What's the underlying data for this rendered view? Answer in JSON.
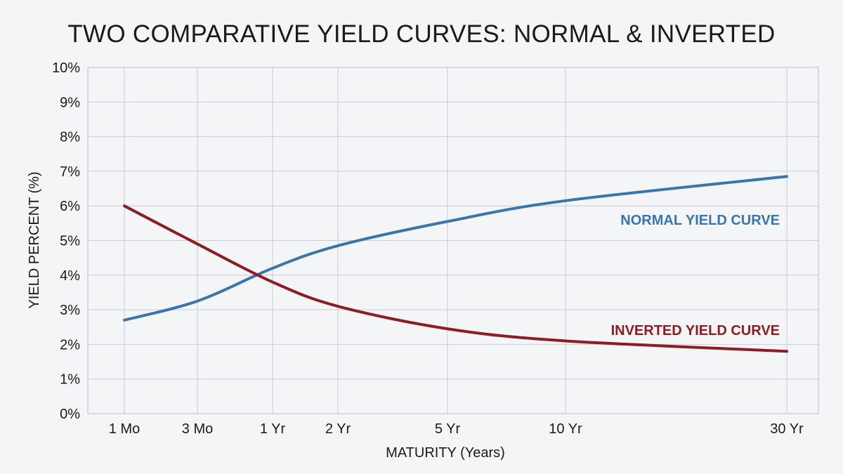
{
  "chart_data": {
    "type": "line",
    "title": "TWO COMPARATIVE YIELD CURVES: NORMAL & INVERTED",
    "xlabel": "MATURITY (Years)",
    "ylabel": "YIELD PERCENT (%)",
    "categories": [
      "1 Mo",
      "3 Mo",
      "1 Yr",
      "2 Yr",
      "5 Yr",
      "10 Yr",
      "30 Yr"
    ],
    "ylim": [
      0,
      10
    ],
    "y_ticks": [
      "0%",
      "1%",
      "2%",
      "3%",
      "4%",
      "5%",
      "6%",
      "7%",
      "8%",
      "9%",
      "10%"
    ],
    "grid": true,
    "legend": "inline labels at right",
    "series": [
      {
        "name": "NORMAL YIELD CURVE",
        "color": "#3a75ae",
        "values": [
          2.7,
          3.25,
          4.2,
          4.85,
          5.55,
          6.15,
          6.85
        ]
      },
      {
        "name": "INVERTED YIELD CURVE",
        "color": "#8e1c24",
        "values": [
          6.0,
          4.9,
          3.8,
          3.1,
          2.45,
          2.1,
          1.8
        ]
      }
    ]
  }
}
